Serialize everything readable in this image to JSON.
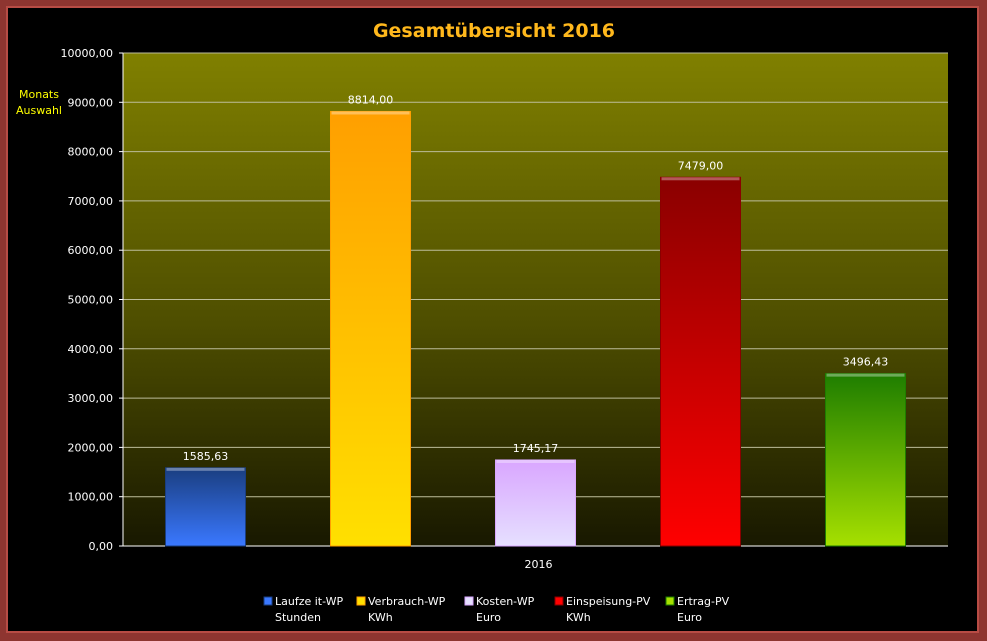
{
  "side_note": [
    "Monats",
    "Auswahl"
  ],
  "chart_data": {
    "type": "bar",
    "title": "Gesamtübersicht  2016",
    "categories": [
      "2016"
    ],
    "ylim": [
      0,
      10000
    ],
    "ytick_step": 1000,
    "ytick_labels": [
      "0,00",
      "1000,00",
      "2000,00",
      "3000,00",
      "4000,00",
      "5000,00",
      "6000,00",
      "7000,00",
      "8000,00",
      "9000,00",
      "10000,00"
    ],
    "grid": true,
    "legend_position": "bottom",
    "series": [
      {
        "name": "Laufze it-WP",
        "unit": "Stunden",
        "value": 1585.63,
        "label": "1585,63",
        "color_top": "#1a3e80",
        "color_bottom": "#3a78ff",
        "icon": "blue-square-icon"
      },
      {
        "name": "Verbrauch-WP",
        "unit": "KWh",
        "value": 8814.0,
        "label": "8814,00",
        "color_top": "#ff9f00",
        "color_bottom": "#ffe000",
        "icon": "orange-square-icon"
      },
      {
        "name": "Kosten-WP",
        "unit": "Euro",
        "value": 1745.17,
        "label": "1745,17",
        "color_top": "#d9a6ff",
        "color_bottom": "#e6e0ff",
        "icon": "lavender-square-icon"
      },
      {
        "name": "Einspeisung-PV",
        "unit": "KWh",
        "value": 7479.0,
        "label": "7479,00",
        "color_top": "#8a0000",
        "color_bottom": "#ff0000",
        "icon": "red-square-icon"
      },
      {
        "name": "Ertrag-PV",
        "unit": "Euro",
        "value": 3496.43,
        "label": "3496,43",
        "color_top": "#1e7d00",
        "color_bottom": "#a6e000",
        "icon": "green-square-icon"
      }
    ]
  }
}
